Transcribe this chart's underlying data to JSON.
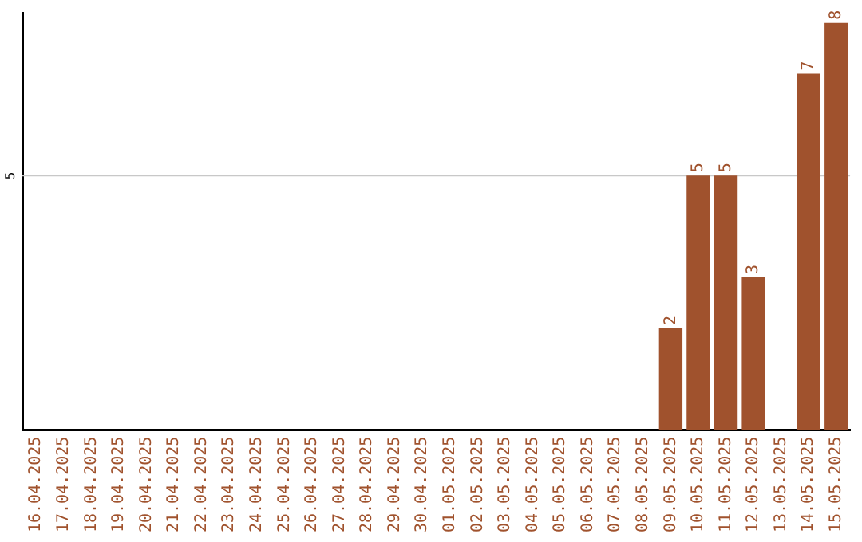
{
  "chart_data": {
    "type": "bar",
    "categories": [
      "16.04.2025",
      "17.04.2025",
      "18.04.2025",
      "19.04.2025",
      "20.04.2025",
      "21.04.2025",
      "22.04.2025",
      "23.04.2025",
      "24.04.2025",
      "25.04.2025",
      "26.04.2025",
      "27.04.2025",
      "28.04.2025",
      "29.04.2025",
      "30.04.2025",
      "01.05.2025",
      "02.05.2025",
      "03.05.2025",
      "04.05.2025",
      "05.05.2025",
      "06.05.2025",
      "07.05.2025",
      "08.05.2025",
      "09.05.2025",
      "10.05.2025",
      "11.05.2025",
      "12.05.2025",
      "13.05.2025",
      "14.05.2025",
      "15.05.2025"
    ],
    "values": [
      null,
      null,
      null,
      null,
      null,
      null,
      null,
      null,
      null,
      null,
      null,
      null,
      null,
      null,
      null,
      null,
      null,
      null,
      null,
      null,
      null,
      null,
      null,
      2,
      5,
      5,
      3,
      null,
      7,
      8
    ],
    "data_labels": true,
    "color": "#a0522d",
    "ylim": [
      0,
      8.2
    ],
    "ref_lines": [
      {
        "axis": "y",
        "value": 5,
        "label": "5",
        "color": "#c8c8c8"
      }
    ],
    "legend": false
  }
}
